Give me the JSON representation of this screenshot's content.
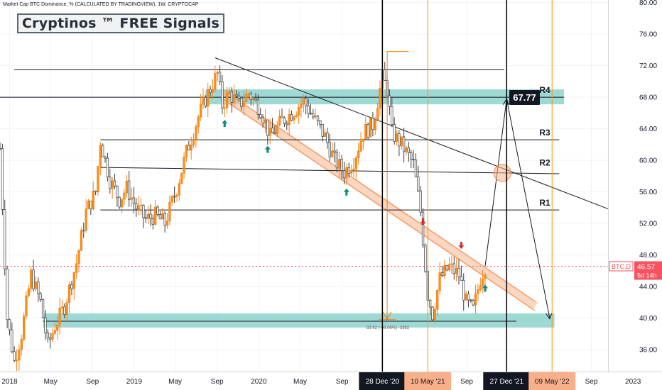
{
  "header": {
    "symbol_description": "Market Cap BTC Dominance, % (CALCULATED BY TRADINGVIEW), 1W, CRYPTOCAP",
    "brand": "Cryptinos ™ FREE Signals"
  },
  "price_label": {
    "symbol": "BTC.D",
    "price": "46.57",
    "countdown": "5d 14h"
  },
  "target_label": "67.77",
  "measure_label": "-33.92 (-46.06%) -3392",
  "resistance_labels": [
    "R4",
    "R3",
    "R2",
    "R1"
  ],
  "chart_data": {
    "type": "candlestick",
    "ylim": [
      34,
      82
    ],
    "y_ticks": [
      "80.00",
      "76.00",
      "72.00",
      "68.00",
      "64.00",
      "60.00",
      "56.00",
      "52.00",
      "48.00",
      "44.00",
      "40.00",
      "36.00"
    ],
    "x_ticks": [
      "2018",
      "May",
      "Sep",
      "2019",
      "May",
      "Sep",
      "2020",
      "May",
      "Sep",
      "28 Dec '20",
      "10 May '21",
      "Sep",
      "27 Dec '21",
      "09 May '22",
      "Sep",
      "2023"
    ],
    "x_date_range": [
      "2017-12-04",
      "2023-01-09"
    ],
    "current_price": 46.57,
    "target_price": 67.77,
    "resistance_levels": [
      {
        "name": "R4",
        "value": 68.0,
        "zone": [
          67.1,
          69.0
        ]
      },
      {
        "name": "R3",
        "value": 62.6
      },
      {
        "name": "R2",
        "value": 58.6
      },
      {
        "name": "R1",
        "value": 53.7
      }
    ],
    "support_zone": [
      38.8,
      40.6
    ],
    "support_level": 39.6,
    "vertical_lines": [
      {
        "label": "28 Dec '20",
        "color": "#000000"
      },
      {
        "label": "10 May '21",
        "color": "#ff9800"
      },
      {
        "label": "27 Dec '21",
        "color": "#000000"
      },
      {
        "label": "09 May '22",
        "color": "#ff9800"
      }
    ],
    "weekly_close_path": [
      [
        "2017-12-04",
        61.5
      ],
      [
        "2017-12-25",
        40.0
      ],
      [
        "2018-01-15",
        34.5
      ],
      [
        "2018-02-05",
        38.0
      ],
      [
        "2018-03-05",
        45.5
      ],
      [
        "2018-04-02",
        42.0
      ],
      [
        "2018-04-23",
        36.5
      ],
      [
        "2018-05-14",
        39.0
      ],
      [
        "2018-06-11",
        41.5
      ],
      [
        "2018-07-16",
        47.0
      ],
      [
        "2018-08-13",
        53.5
      ],
      [
        "2018-09-10",
        56.0
      ],
      [
        "2018-09-24",
        62.5
      ],
      [
        "2018-10-22",
        57.5
      ],
      [
        "2018-11-19",
        55.0
      ],
      [
        "2018-12-10",
        56.5
      ],
      [
        "2019-01-07",
        54.0
      ],
      [
        "2019-02-04",
        52.5
      ],
      [
        "2019-03-04",
        53.0
      ],
      [
        "2019-04-01",
        52.0
      ],
      [
        "2019-05-06",
        56.5
      ],
      [
        "2019-06-03",
        61.0
      ],
      [
        "2019-07-08",
        65.5
      ],
      [
        "2019-08-05",
        68.5
      ],
      [
        "2019-09-02",
        71.0
      ],
      [
        "2019-09-16",
        67.0
      ],
      [
        "2019-10-07",
        68.5
      ],
      [
        "2019-11-04",
        67.0
      ],
      [
        "2019-12-02",
        68.5
      ],
      [
        "2020-01-06",
        66.5
      ],
      [
        "2020-02-03",
        63.0
      ],
      [
        "2020-03-09",
        65.0
      ],
      [
        "2020-04-06",
        66.0
      ],
      [
        "2020-05-11",
        67.5
      ],
      [
        "2020-06-08",
        65.5
      ],
      [
        "2020-07-13",
        63.0
      ],
      [
        "2020-08-10",
        60.0
      ],
      [
        "2020-09-07",
        58.5
      ],
      [
        "2020-10-05",
        60.0
      ],
      [
        "2020-11-02",
        63.5
      ],
      [
        "2020-11-30",
        64.5
      ],
      [
        "2020-12-28",
        70.5
      ],
      [
        "2021-01-11",
        69.0
      ],
      [
        "2021-01-25",
        63.5
      ],
      [
        "2021-02-22",
        62.0
      ],
      [
        "2021-03-29",
        59.5
      ],
      [
        "2021-04-19",
        53.5
      ],
      [
        "2021-05-10",
        43.0
      ],
      [
        "2021-05-24",
        40.5
      ],
      [
        "2021-06-14",
        45.0
      ],
      [
        "2021-07-12",
        46.5
      ],
      [
        "2021-08-09",
        45.5
      ],
      [
        "2021-08-30",
        42.0
      ],
      [
        "2021-09-20",
        41.0
      ],
      [
        "2021-10-11",
        45.0
      ],
      [
        "2021-10-25",
        46.57
      ]
    ],
    "projection_path": [
      [
        "2021-10-25",
        46.57
      ],
      [
        "2021-12-27",
        67.77
      ],
      [
        "2022-05-02",
        40.0
      ]
    ]
  }
}
